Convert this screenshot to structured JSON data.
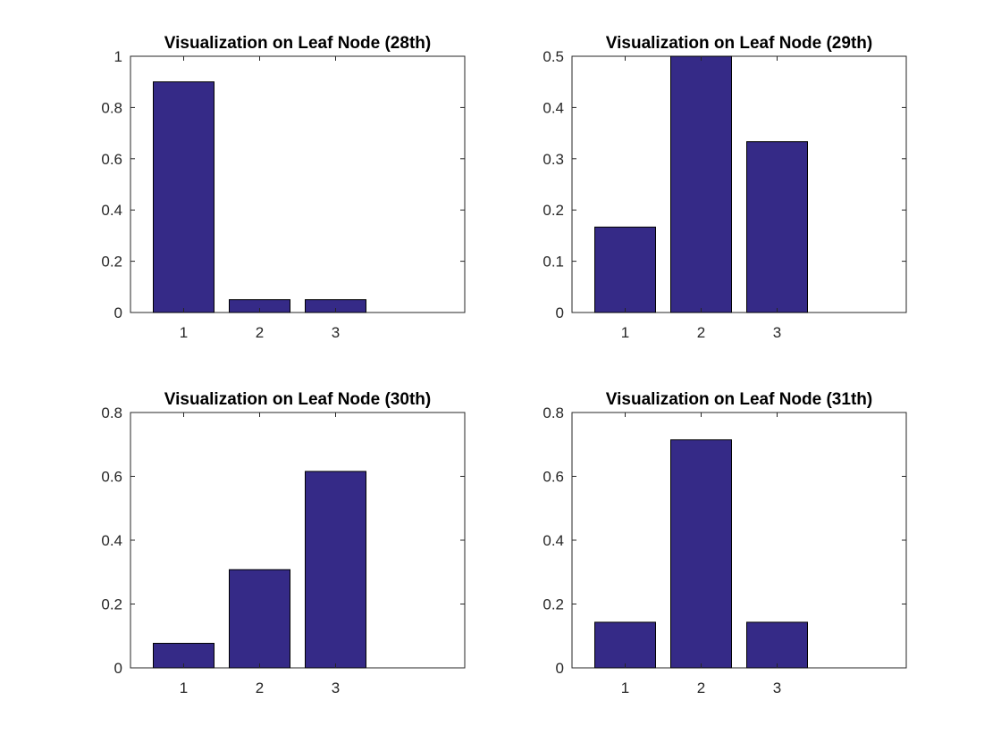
{
  "style": {
    "bar_color": "#352a87",
    "bar_edge_color": "#000000",
    "axis_color": "#262626",
    "background": "#ffffff"
  },
  "chart_data": [
    {
      "type": "bar",
      "title": "Visualization on Leaf Node (28th)",
      "xlabel": "",
      "ylabel": "",
      "categories": [
        "1",
        "2",
        "3"
      ],
      "values": [
        0.9,
        0.05,
        0.05
      ],
      "xlim": [
        0.3,
        4.7
      ],
      "ylim": [
        0,
        1
      ],
      "yticks": [
        0,
        0.2,
        0.4,
        0.6,
        0.8,
        1
      ],
      "ytick_labels": [
        "0",
        "0.2",
        "0.4",
        "0.6",
        "0.8",
        "1"
      ],
      "grid": false,
      "legend": "none"
    },
    {
      "type": "bar",
      "title": "Visualization on Leaf Node (29th)",
      "xlabel": "",
      "ylabel": "",
      "categories": [
        "1",
        "2",
        "3"
      ],
      "values": [
        0.1667,
        0.5,
        0.3333
      ],
      "xlim": [
        0.3,
        4.7
      ],
      "ylim": [
        0,
        0.5
      ],
      "yticks": [
        0,
        0.1,
        0.2,
        0.3,
        0.4,
        0.5
      ],
      "ytick_labels": [
        "0",
        "0.1",
        "0.2",
        "0.3",
        "0.4",
        "0.5"
      ],
      "grid": false,
      "legend": "none"
    },
    {
      "type": "bar",
      "title": "Visualization on Leaf Node (30th)",
      "xlabel": "",
      "ylabel": "",
      "categories": [
        "1",
        "2",
        "3"
      ],
      "values": [
        0.0769,
        0.3077,
        0.6154
      ],
      "xlim": [
        0.3,
        4.7
      ],
      "ylim": [
        0,
        0.8
      ],
      "yticks": [
        0,
        0.2,
        0.4,
        0.6,
        0.8
      ],
      "ytick_labels": [
        "0",
        "0.2",
        "0.4",
        "0.6",
        "0.8"
      ],
      "grid": false,
      "legend": "none"
    },
    {
      "type": "bar",
      "title": "Visualization on Leaf Node (31th)",
      "xlabel": "",
      "ylabel": "",
      "categories": [
        "1",
        "2",
        "3"
      ],
      "values": [
        0.1429,
        0.7143,
        0.1429
      ],
      "xlim": [
        0.3,
        4.7
      ],
      "ylim": [
        0,
        0.8
      ],
      "yticks": [
        0,
        0.2,
        0.4,
        0.6,
        0.8
      ],
      "ytick_labels": [
        "0",
        "0.2",
        "0.4",
        "0.6",
        "0.8"
      ],
      "grid": false,
      "legend": "none"
    }
  ]
}
